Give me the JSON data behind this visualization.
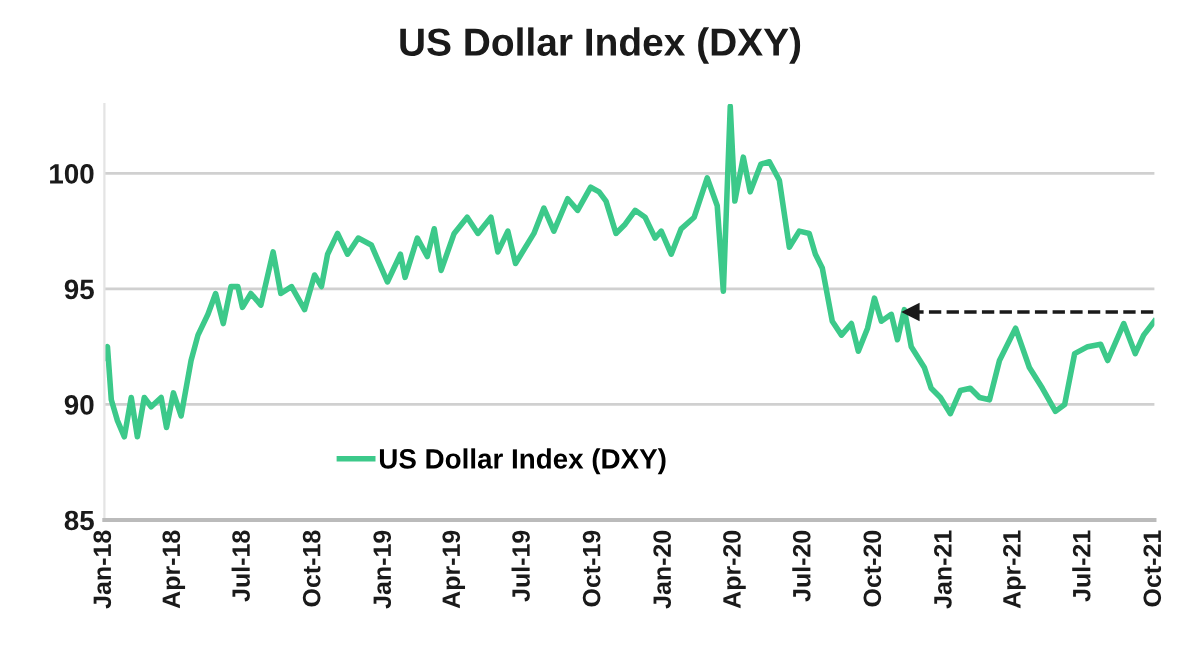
{
  "chart_data": {
    "type": "line",
    "title": "US Dollar Index (DXY)",
    "series": [
      {
        "name": "US Dollar Index (DXY)",
        "color": "#3cc98a",
        "line_style": "solid",
        "x": [
          "2018-01-01",
          "2018-01-05",
          "2018-01-10",
          "2018-01-18",
          "2018-01-27",
          "2018-02-05",
          "2018-02-13",
          "2018-02-22",
          "2018-03-03",
          "2018-03-16",
          "2018-03-23",
          "2018-04-01",
          "2018-04-11",
          "2018-04-24",
          "2018-05-03",
          "2018-05-16",
          "2018-05-26",
          "2018-06-05",
          "2018-06-15",
          "2018-06-24",
          "2018-06-30",
          "2018-07-11",
          "2018-07-24",
          "2018-08-09",
          "2018-08-19",
          "2018-09-02",
          "2018-09-19",
          "2018-10-02",
          "2018-10-11",
          "2018-10-19",
          "2018-11-01",
          "2018-11-14",
          "2018-11-28",
          "2018-12-15",
          "2019-01-05",
          "2019-01-22",
          "2019-01-28",
          "2019-02-13",
          "2019-02-26",
          "2019-03-07",
          "2019-03-16",
          "2019-04-02",
          "2019-04-19",
          "2019-05-03",
          "2019-05-20",
          "2019-05-29",
          "2019-06-11",
          "2019-06-21",
          "2019-07-15",
          "2019-07-28",
          "2019-08-10",
          "2019-08-28",
          "2019-09-10",
          "2019-09-27",
          "2019-10-08",
          "2019-10-17",
          "2019-10-30",
          "2019-11-11",
          "2019-11-24",
          "2019-12-07",
          "2019-12-20",
          "2019-12-28",
          "2020-01-10",
          "2020-01-23",
          "2020-02-09",
          "2020-02-26",
          "2020-03-10",
          "2020-03-18",
          "2020-03-27",
          "2020-04-02",
          "2020-04-13",
          "2020-04-22",
          "2020-05-06",
          "2020-05-17",
          "2020-05-30",
          "2020-06-12",
          "2020-06-25",
          "2020-07-08",
          "2020-07-16",
          "2020-07-25",
          "2020-08-07",
          "2020-08-19",
          "2020-09-01",
          "2020-09-10",
          "2020-09-22",
          "2020-10-01",
          "2020-10-10",
          "2020-10-23",
          "2020-10-31",
          "2020-11-09",
          "2020-11-18",
          "2020-12-05",
          "2020-12-14",
          "2020-12-26",
          "2021-01-08",
          "2021-01-21",
          "2021-02-03",
          "2021-02-15",
          "2021-02-28",
          "2021-03-13",
          "2021-04-03",
          "2021-04-21",
          "2021-05-08",
          "2021-05-25",
          "2021-06-06",
          "2021-06-19",
          "2021-07-06",
          "2021-07-23",
          "2021-08-01",
          "2021-08-22",
          "2021-09-06",
          "2021-09-17",
          "2021-10-01"
        ],
        "values": [
          92.0,
          92.5,
          90.2,
          89.3,
          88.6,
          90.3,
          88.6,
          90.3,
          89.9,
          90.3,
          89.0,
          90.5,
          89.5,
          91.9,
          93.0,
          93.9,
          94.8,
          93.5,
          95.1,
          95.1,
          94.2,
          94.8,
          94.3,
          96.6,
          94.8,
          95.1,
          94.1,
          95.6,
          95.1,
          96.5,
          97.4,
          96.5,
          97.2,
          96.9,
          95.3,
          96.5,
          95.5,
          97.2,
          96.4,
          97.6,
          95.8,
          97.4,
          98.1,
          97.4,
          98.1,
          96.6,
          97.5,
          96.1,
          97.4,
          98.5,
          97.5,
          98.9,
          98.4,
          99.4,
          99.2,
          98.8,
          97.4,
          97.8,
          98.4,
          98.1,
          97.2,
          97.5,
          96.5,
          97.6,
          98.1,
          99.8,
          98.6,
          94.9,
          102.9,
          98.8,
          100.7,
          99.2,
          100.4,
          100.5,
          99.7,
          96.8,
          97.5,
          97.4,
          96.5,
          95.9,
          93.6,
          93.0,
          93.5,
          92.3,
          93.3,
          94.6,
          93.6,
          93.9,
          92.8,
          94.1,
          92.5,
          91.6,
          90.7,
          90.3,
          89.6,
          90.6,
          90.7,
          90.3,
          90.2,
          91.9,
          93.3,
          91.6,
          90.7,
          89.7,
          90.0,
          92.2,
          92.5,
          92.6,
          91.9,
          93.5,
          92.2,
          93.0,
          93.6
        ]
      },
      {
        "color": "#1a1a1a",
        "line_style": "dashed",
        "marker": "triangle",
        "x": [
          "2020-11-18",
          "2021-10-01"
        ],
        "values": [
          94.0,
          94.0
        ]
      }
    ],
    "xlim": [
      "2018-01-01",
      "2021-10-01"
    ],
    "xticks": [
      {
        "value": "2018-01-01",
        "label": "Jan-18"
      },
      {
        "value": "2018-04-01",
        "label": "Apr-18"
      },
      {
        "value": "2018-07-01",
        "label": "Jul-18"
      },
      {
        "value": "2018-10-01",
        "label": "Oct-18"
      },
      {
        "value": "2019-01-01",
        "label": "Jan-19"
      },
      {
        "value": "2019-04-01",
        "label": "Apr-19"
      },
      {
        "value": "2019-07-01",
        "label": "Jul-19"
      },
      {
        "value": "2019-10-01",
        "label": "Oct-19"
      },
      {
        "value": "2020-01-01",
        "label": "Jan-20"
      },
      {
        "value": "2020-04-01",
        "label": "Apr-20"
      },
      {
        "value": "2020-07-01",
        "label": "Jul-20"
      },
      {
        "value": "2020-10-01",
        "label": "Oct-20"
      },
      {
        "value": "2021-01-01",
        "label": "Jan-21"
      },
      {
        "value": "2021-04-01",
        "label": "Apr-21"
      },
      {
        "value": "2021-07-01",
        "label": "Jul-21"
      },
      {
        "value": "2021-10-01",
        "label": "Oct-21"
      }
    ],
    "ylim": [
      85,
      103
    ],
    "yticks": [
      85,
      90,
      95,
      100
    ],
    "grid": "y",
    "legend": "bottom left",
    "marker": "none"
  }
}
